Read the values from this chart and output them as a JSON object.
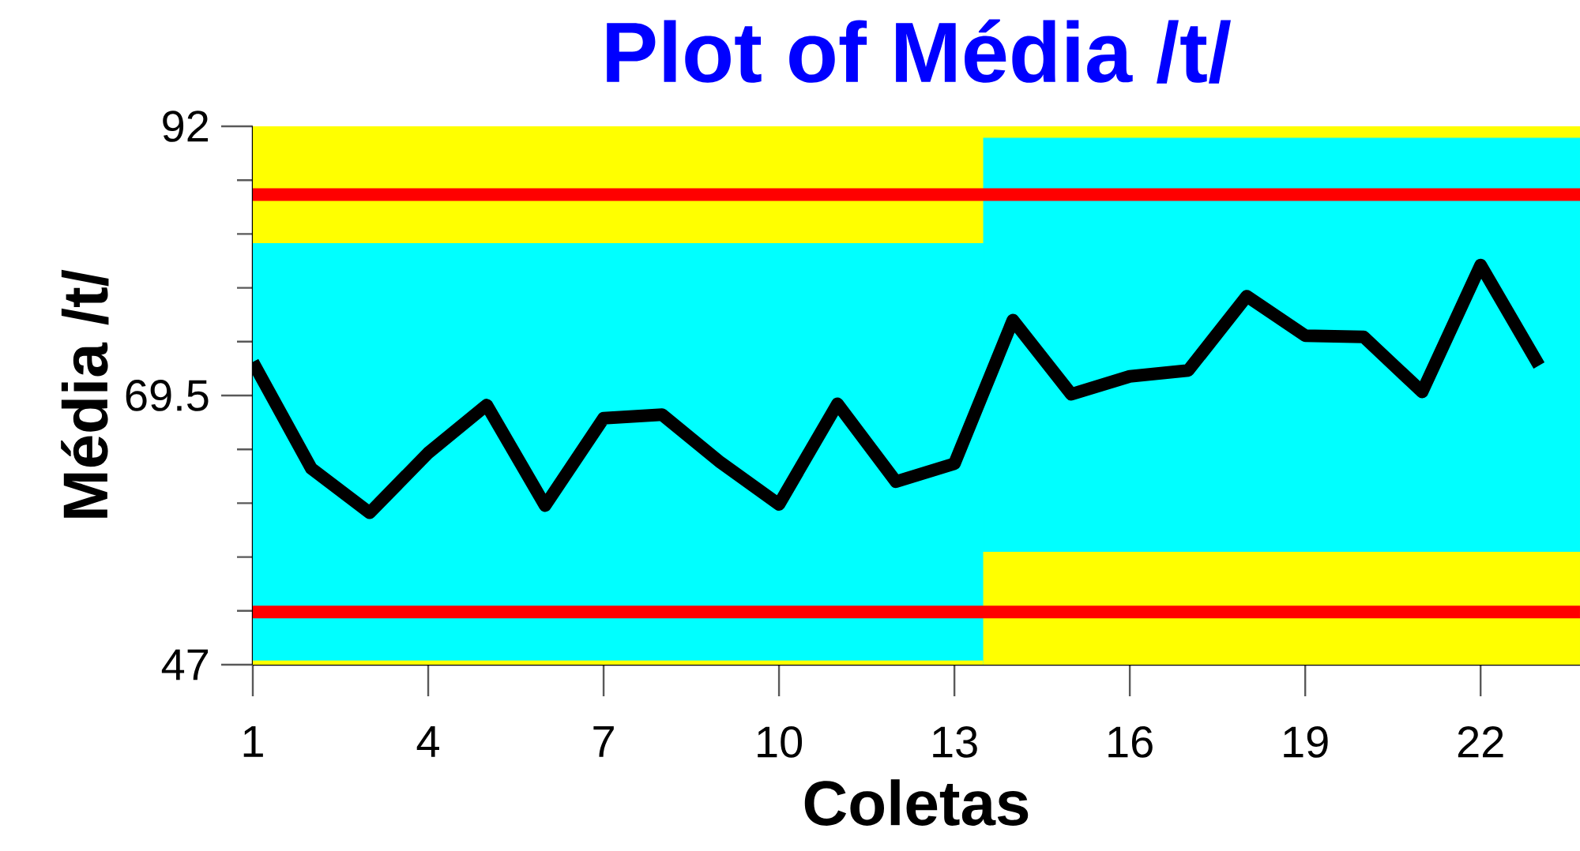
{
  "chart_data": {
    "type": "line",
    "title": "Plot of Média /t/",
    "xlabel": "Coletas",
    "ylabel": "Média /t/",
    "x": [
      1,
      2,
      3,
      4,
      5,
      6,
      7,
      8,
      9,
      10,
      11,
      12,
      13,
      14,
      15,
      16,
      17,
      18,
      19,
      20,
      21,
      22,
      23
    ],
    "series": [
      {
        "type": "area",
        "color": "#00ffff",
        "x": [
          1,
          13.5
        ],
        "values": [
          82.2,
          82.2
        ]
      },
      {
        "type": "area",
        "color": "#ffff00",
        "x": [
          1,
          13.5
        ],
        "values": [
          47.3,
          47.3
        ]
      },
      {
        "type": "area",
        "color": "#00ffff",
        "x": [
          13.5,
          23.7
        ],
        "values": [
          91.0,
          91.0
        ]
      },
      {
        "type": "area",
        "color": "#ffff00",
        "x": [
          13.5,
          23.7
        ],
        "values": [
          56.4,
          56.4
        ]
      },
      {
        "color": "#000000",
        "values": [
          72.3,
          63.4,
          59.7,
          64.7,
          68.7,
          60.3,
          67.6,
          67.9,
          63.9,
          60.4,
          68.8,
          62.3,
          63.8,
          75.8,
          69.6,
          71.1,
          71.6,
          77.8,
          74.5,
          74.4,
          69.8,
          80.4,
          72.0
        ]
      }
    ],
    "xlim": [
      1,
      23.7
    ],
    "ylim": [
      47,
      92
    ],
    "xticks": [
      1,
      4,
      7,
      10,
      13,
      16,
      19,
      22
    ],
    "yticks": [
      47,
      {
        "value": 51.5,
        "label": null
      },
      {
        "value": 56,
        "label": null
      },
      {
        "value": 60.5,
        "label": null
      },
      {
        "value": 65,
        "label": null
      },
      69.5,
      {
        "value": 74,
        "label": null
      },
      {
        "value": 78.5,
        "label": null
      },
      {
        "value": 83,
        "label": null
      },
      {
        "value": 87.5,
        "label": null
      },
      92
    ],
    "ref_lines": [
      {
        "axis": "y",
        "value": 86.3,
        "color": "#ff0000"
      },
      {
        "axis": "y",
        "value": 51.4,
        "color": "#ff0000"
      }
    ],
    "bands": [
      {
        "axis": "y",
        "from": 47,
        "to": 92,
        "color": "#ffff00"
      }
    ],
    "grid": false,
    "marker": "none",
    "line_style": "solid"
  }
}
